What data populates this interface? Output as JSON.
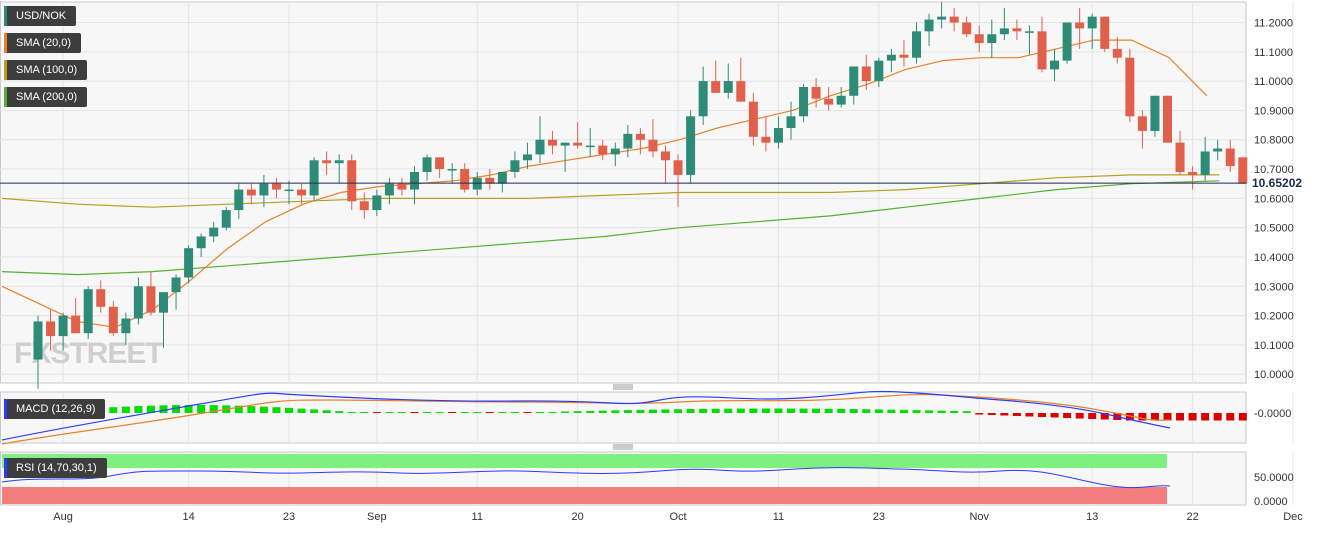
{
  "chart_data": {
    "type": "candlestick",
    "symbol": "USD/NOK",
    "last_price": "10.65202",
    "legend": [
      {
        "label": "USD/NOK",
        "color": "#2e8b77"
      },
      {
        "label": "SMA (20,0)",
        "color": "#e8822a"
      },
      {
        "label": "SMA (100,0)",
        "color": "#b5a020"
      },
      {
        "label": "SMA (200,0)",
        "color": "#55b033"
      }
    ],
    "watermark": "FXSTREET",
    "x_ticks": [
      "Aug",
      "14",
      "23",
      "Sep",
      "11",
      "20",
      "Oct",
      "11",
      "23",
      "Nov",
      "13",
      "22",
      "Dec"
    ],
    "y_ticks": [
      "10.0000",
      "10.1000",
      "10.2000",
      "10.3000",
      "10.4000",
      "10.5000",
      "10.6000",
      "10.7000",
      "10.8000",
      "10.9000",
      "11.0000",
      "11.1000",
      "11.2000"
    ],
    "ylim": [
      9.97,
      11.27
    ],
    "candles": [
      [
        10.05,
        10.2,
        9.95,
        10.18
      ],
      [
        10.18,
        10.22,
        10.08,
        10.13
      ],
      [
        10.13,
        10.21,
        10.08,
        10.2
      ],
      [
        10.2,
        10.26,
        10.14,
        10.14
      ],
      [
        10.14,
        10.3,
        10.12,
        10.29
      ],
      [
        10.29,
        10.32,
        10.21,
        10.23
      ],
      [
        10.23,
        10.25,
        10.13,
        10.14
      ],
      [
        10.14,
        10.21,
        10.1,
        10.19
      ],
      [
        10.19,
        10.33,
        10.17,
        10.3
      ],
      [
        10.3,
        10.35,
        10.2,
        10.21
      ],
      [
        10.21,
        10.28,
        10.09,
        10.28
      ],
      [
        10.28,
        10.34,
        10.22,
        10.33
      ],
      [
        10.33,
        10.44,
        10.31,
        10.43
      ],
      [
        10.43,
        10.48,
        10.4,
        10.47
      ],
      [
        10.47,
        10.52,
        10.45,
        10.5
      ],
      [
        10.5,
        10.57,
        10.49,
        10.56
      ],
      [
        10.56,
        10.65,
        10.53,
        10.63
      ],
      [
        10.63,
        10.65,
        10.58,
        10.61
      ],
      [
        10.61,
        10.68,
        10.57,
        10.65
      ],
      [
        10.65,
        10.67,
        10.6,
        10.63
      ],
      [
        10.63,
        10.66,
        10.58,
        10.63
      ],
      [
        10.63,
        10.65,
        10.58,
        10.61
      ],
      [
        10.61,
        10.74,
        10.59,
        10.73
      ],
      [
        10.73,
        10.76,
        10.68,
        10.72
      ],
      [
        10.72,
        10.75,
        10.65,
        10.73
      ],
      [
        10.73,
        10.75,
        10.56,
        10.59
      ],
      [
        10.59,
        10.62,
        10.53,
        10.56
      ],
      [
        10.56,
        10.63,
        10.54,
        10.61
      ],
      [
        10.61,
        10.67,
        10.58,
        10.65
      ],
      [
        10.65,
        10.67,
        10.61,
        10.63
      ],
      [
        10.63,
        10.71,
        10.58,
        10.69
      ],
      [
        10.69,
        10.75,
        10.66,
        10.74
      ],
      [
        10.74,
        10.74,
        10.67,
        10.7
      ],
      [
        10.7,
        10.72,
        10.65,
        10.7
      ],
      [
        10.7,
        10.72,
        10.62,
        10.63
      ],
      [
        10.63,
        10.69,
        10.61,
        10.67
      ],
      [
        10.67,
        10.7,
        10.63,
        10.65
      ],
      [
        10.65,
        10.69,
        10.62,
        10.69
      ],
      [
        10.69,
        10.76,
        10.67,
        10.73
      ],
      [
        10.73,
        10.79,
        10.7,
        10.75
      ],
      [
        10.75,
        10.88,
        10.72,
        10.8
      ],
      [
        10.8,
        10.83,
        10.75,
        10.78
      ],
      [
        10.78,
        10.79,
        10.69,
        10.79
      ],
      [
        10.79,
        10.86,
        10.77,
        10.78
      ],
      [
        10.78,
        10.84,
        10.74,
        10.78
      ],
      [
        10.78,
        10.8,
        10.73,
        10.75
      ],
      [
        10.75,
        10.79,
        10.71,
        10.77
      ],
      [
        10.77,
        10.85,
        10.74,
        10.82
      ],
      [
        10.82,
        10.84,
        10.75,
        10.8
      ],
      [
        10.8,
        10.87,
        10.74,
        10.76
      ],
      [
        10.76,
        10.78,
        10.65,
        10.73
      ],
      [
        10.73,
        10.75,
        10.57,
        10.68
      ],
      [
        10.68,
        10.9,
        10.65,
        10.88
      ],
      [
        10.88,
        11.05,
        10.85,
        11.0
      ],
      [
        11.0,
        11.07,
        10.97,
        10.96
      ],
      [
        10.96,
        11.06,
        10.94,
        11.0
      ],
      [
        11.0,
        11.08,
        10.93,
        10.93
      ],
      [
        10.93,
        10.96,
        10.78,
        10.81
      ],
      [
        10.81,
        10.88,
        10.76,
        10.79
      ],
      [
        10.79,
        10.88,
        10.77,
        10.84
      ],
      [
        10.84,
        10.93,
        10.8,
        10.88
      ],
      [
        10.88,
        10.99,
        10.86,
        10.98
      ],
      [
        10.98,
        11.01,
        10.91,
        10.94
      ],
      [
        10.94,
        10.98,
        10.9,
        10.92
      ],
      [
        10.92,
        10.98,
        10.91,
        10.95
      ],
      [
        10.95,
        11.05,
        10.92,
        11.05
      ],
      [
        11.05,
        11.09,
        10.97,
        11.0
      ],
      [
        11.0,
        11.08,
        10.98,
        11.07
      ],
      [
        11.07,
        11.11,
        11.03,
        11.09
      ],
      [
        11.09,
        11.14,
        11.05,
        11.08
      ],
      [
        11.08,
        11.2,
        11.06,
        11.17
      ],
      [
        11.17,
        11.23,
        11.12,
        11.21
      ],
      [
        11.21,
        11.27,
        11.18,
        11.22
      ],
      [
        11.22,
        11.25,
        11.17,
        11.2
      ],
      [
        11.2,
        11.22,
        11.15,
        11.16
      ],
      [
        11.16,
        11.19,
        11.1,
        11.13
      ],
      [
        11.13,
        11.21,
        11.08,
        11.16
      ],
      [
        11.16,
        11.25,
        11.14,
        11.18
      ],
      [
        11.18,
        11.21,
        11.14,
        11.17
      ],
      [
        11.17,
        11.19,
        11.09,
        11.17
      ],
      [
        11.17,
        11.22,
        11.03,
        11.04
      ],
      [
        11.04,
        11.11,
        11.0,
        11.07
      ],
      [
        11.07,
        11.2,
        11.06,
        11.2
      ],
      [
        11.2,
        11.25,
        11.11,
        11.18
      ],
      [
        11.18,
        11.23,
        11.11,
        11.22
      ],
      [
        11.22,
        11.22,
        11.1,
        11.11
      ],
      [
        11.11,
        11.15,
        11.06,
        11.08
      ],
      [
        11.08,
        11.11,
        10.86,
        10.88
      ],
      [
        10.88,
        10.9,
        10.77,
        10.83
      ],
      [
        10.83,
        10.95,
        10.81,
        10.95
      ],
      [
        10.95,
        10.95,
        10.79,
        10.79
      ],
      [
        10.79,
        10.83,
        10.68,
        10.69
      ],
      [
        10.69,
        10.71,
        10.63,
        10.68
      ],
      [
        10.68,
        10.81,
        10.66,
        10.76
      ],
      [
        10.76,
        10.8,
        10.73,
        10.77
      ],
      [
        10.77,
        10.8,
        10.69,
        10.71
      ],
      [
        10.74,
        10.74,
        10.65,
        10.65
      ]
    ],
    "sma20": [
      [
        0,
        10.3
      ],
      [
        6,
        10.18
      ],
      [
        9,
        10.16
      ],
      [
        12,
        10.22
      ],
      [
        15,
        10.32
      ],
      [
        18,
        10.43
      ],
      [
        21,
        10.52
      ],
      [
        24,
        10.58
      ],
      [
        27,
        10.62
      ],
      [
        30,
        10.64
      ],
      [
        33,
        10.65
      ],
      [
        36,
        10.66
      ],
      [
        39,
        10.68
      ],
      [
        42,
        10.71
      ],
      [
        45,
        10.73
      ],
      [
        48,
        10.75
      ],
      [
        51,
        10.77
      ],
      [
        54,
        10.8
      ],
      [
        57,
        10.84
      ],
      [
        60,
        10.87
      ],
      [
        63,
        10.9
      ],
      [
        66,
        10.95
      ],
      [
        69,
        10.99
      ],
      [
        72,
        11.04
      ],
      [
        75,
        11.07
      ],
      [
        78,
        11.08
      ],
      [
        81,
        11.08
      ],
      [
        84,
        11.11
      ],
      [
        87,
        11.14
      ],
      [
        90,
        11.14
      ],
      [
        93,
        11.08
      ],
      [
        96,
        10.95
      ]
    ],
    "sma100": [
      [
        0,
        10.6
      ],
      [
        6,
        10.58
      ],
      [
        12,
        10.57
      ],
      [
        18,
        10.58
      ],
      [
        24,
        10.59
      ],
      [
        30,
        10.6
      ],
      [
        36,
        10.6
      ],
      [
        42,
        10.6
      ],
      [
        48,
        10.61
      ],
      [
        54,
        10.62
      ],
      [
        60,
        10.62
      ],
      [
        66,
        10.62
      ],
      [
        72,
        10.63
      ],
      [
        78,
        10.65
      ],
      [
        84,
        10.67
      ],
      [
        90,
        10.68
      ],
      [
        97,
        10.68
      ]
    ],
    "sma200": [
      [
        0,
        10.35
      ],
      [
        6,
        10.34
      ],
      [
        12,
        10.35
      ],
      [
        18,
        10.37
      ],
      [
        24,
        10.39
      ],
      [
        30,
        10.41
      ],
      [
        36,
        10.43
      ],
      [
        42,
        10.45
      ],
      [
        48,
        10.47
      ],
      [
        54,
        10.5
      ],
      [
        60,
        10.52
      ],
      [
        66,
        10.54
      ],
      [
        72,
        10.57
      ],
      [
        78,
        10.6
      ],
      [
        84,
        10.63
      ],
      [
        90,
        10.65
      ],
      [
        97,
        10.66
      ]
    ],
    "macd": {
      "label": "MACD (12,26,9)",
      "y_tick": "-0.0000",
      "histogram_colors": {
        "positive": "#00dd00",
        "negative": "#dd0000"
      }
    },
    "rsi": {
      "label": "RSI (14,70,30,1)",
      "y_ticks": [
        "50.0000",
        "0.0000"
      ],
      "overbought_color": "#7ef07e",
      "oversold_color": "#f47e7e"
    }
  }
}
